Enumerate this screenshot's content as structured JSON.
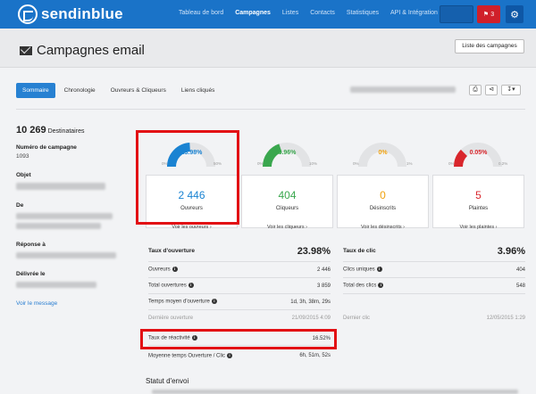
{
  "brand": {
    "name": "sendinblue"
  },
  "nav": {
    "items": [
      "Tableau de bord",
      "Campagnes",
      "Listes",
      "Contacts",
      "Statistiques",
      "API & Intégration"
    ],
    "active_index": 1
  },
  "topbar": {
    "alerts_count": "3",
    "gear_icon": "gear-icon",
    "bell_icon": "bell-icon"
  },
  "header": {
    "title": "Campagnes email",
    "list_button": "Liste des campagnes"
  },
  "tabs": [
    "Sommaire",
    "Chronologie",
    "Ouvreurs & Cliqueurs",
    "Liens cliqués"
  ],
  "left": {
    "recipients_count": "10 269",
    "recipients_label": "Destinataires",
    "campaign_number_label": "Numéro de campagne",
    "campaign_number": "1093",
    "subject_label": "Objet",
    "from_label": "De",
    "reply_label": "Réponse à",
    "delivered_label": "Délivrée le",
    "view_message": "Voir le message"
  },
  "cards": [
    {
      "pct": "23.98%",
      "pct_value": 0.4796,
      "min": "0%",
      "max": "50%",
      "number": "2 446",
      "label": "Ouvreurs",
      "link": "Voir les ouvreurs ›",
      "color": "#1a83d2"
    },
    {
      "pct": "3.96%",
      "pct_value": 0.396,
      "min": "0%",
      "max": "10%",
      "number": "404",
      "label": "Cliqueurs",
      "link": "Voir les cliqueurs ›",
      "color": "#3aa74e"
    },
    {
      "pct": "0%",
      "pct_value": 0,
      "min": "0%",
      "max": "1%",
      "number": "0",
      "label": "Désinscrits",
      "link": "Voir les désinscrits ›",
      "color": "#f0a20f"
    },
    {
      "pct": "0.05%",
      "pct_value": 0.25,
      "min": "0%",
      "max": "0.2%",
      "number": "5",
      "label": "Plaintes",
      "link": "Voir les plaintes ›",
      "color": "#d9262c"
    }
  ],
  "open_stats": {
    "header_label": "Taux d'ouverture",
    "header_value": "23.98%",
    "rows": [
      {
        "label": "Ouvreurs",
        "value": "2 446"
      },
      {
        "label": "Total ouvertures",
        "value": "3 859"
      },
      {
        "label": "Temps moyen d'ouverture",
        "value": "1d, 3h, 38m, 29s"
      },
      {
        "label": "Dernière ouverture",
        "value": "21/09/2015 4:09"
      }
    ],
    "reactivity_label": "Taux de réactivité",
    "reactivity_value": "16.52%",
    "avg_open_click_label": "Moyenne temps Ouverture / Clic",
    "avg_open_click_value": "6h, 51m, 52s"
  },
  "click_stats": {
    "header_label": "Taux de clic",
    "header_value": "3.96%",
    "rows": [
      {
        "label": "Clics uniques",
        "value": "404"
      },
      {
        "label": "Total des clics",
        "value": "548"
      },
      {
        "label": "Dernier clic",
        "value": "12/05/2015 1:29"
      }
    ]
  },
  "status_title": "Statut d'envoi"
}
